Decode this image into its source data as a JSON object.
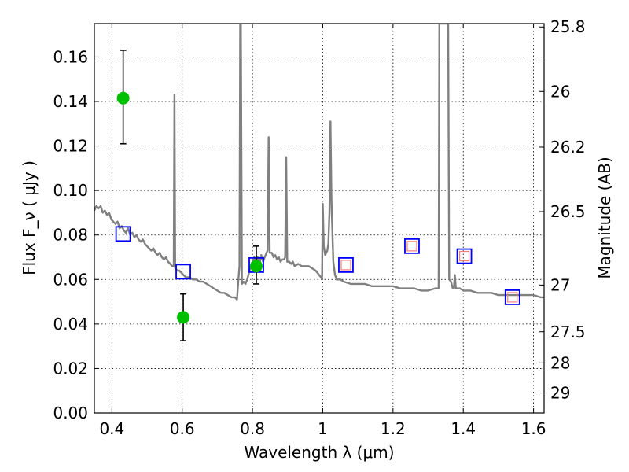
{
  "chart_data": {
    "type": "scatter",
    "title": "",
    "xlabel": "Wavelength  λ (μm)",
    "ylabel": "Flux  F_ν  ( μJy )",
    "ylabel_right": "Magnitude (AB)",
    "xlim": [
      0.35,
      1.63
    ],
    "ylim": [
      0.0,
      0.175
    ],
    "grid": true,
    "x_ticks": [
      0.4,
      0.6,
      0.8,
      1.0,
      1.2,
      1.4,
      1.6
    ],
    "x_tick_labels": [
      "0.4",
      "0.6",
      "0.8",
      "1",
      "1.2",
      "1.4",
      "1.6"
    ],
    "y_ticks": [
      0.0,
      0.02,
      0.04,
      0.06,
      0.08,
      0.1,
      0.12,
      0.14,
      0.16
    ],
    "y_tick_labels": [
      "0.00",
      "0.02",
      "0.04",
      "0.06",
      "0.08",
      "0.10",
      "0.12",
      "0.14",
      "0.16"
    ],
    "right_ticks": [
      {
        "label": "25.8",
        "flux": 0.1735
      },
      {
        "label": "26",
        "flux": 0.1445
      },
      {
        "label": "26.2",
        "flux": 0.1195
      },
      {
        "label": "26.5",
        "flux": 0.0905
      },
      {
        "label": "27",
        "flux": 0.0575
      },
      {
        "label": "27.5",
        "flux": 0.0365
      },
      {
        "label": "28",
        "flux": 0.0225
      },
      {
        "label": "29",
        "flux": 0.009
      }
    ],
    "series": [
      {
        "kind": "sed_model_line",
        "color": "#808080",
        "points": [
          [
            0.35,
            0.091
          ],
          [
            0.356,
            0.093
          ],
          [
            0.362,
            0.092
          ],
          [
            0.368,
            0.093
          ],
          [
            0.374,
            0.09
          ],
          [
            0.38,
            0.091
          ],
          [
            0.386,
            0.089
          ],
          [
            0.392,
            0.09
          ],
          [
            0.398,
            0.087
          ],
          [
            0.404,
            0.086
          ],
          [
            0.41,
            0.085
          ],
          [
            0.416,
            0.086
          ],
          [
            0.422,
            0.083
          ],
          [
            0.428,
            0.084
          ],
          [
            0.434,
            0.082
          ],
          [
            0.44,
            0.081
          ],
          [
            0.446,
            0.083
          ],
          [
            0.452,
            0.08
          ],
          [
            0.458,
            0.081
          ],
          [
            0.464,
            0.079
          ],
          [
            0.47,
            0.08
          ],
          [
            0.476,
            0.078
          ],
          [
            0.482,
            0.077
          ],
          [
            0.488,
            0.078
          ],
          [
            0.494,
            0.076
          ],
          [
            0.5,
            0.075
          ],
          [
            0.506,
            0.074
          ],
          [
            0.512,
            0.073
          ],
          [
            0.518,
            0.074
          ],
          [
            0.524,
            0.072
          ],
          [
            0.53,
            0.071
          ],
          [
            0.536,
            0.072
          ],
          [
            0.542,
            0.07
          ],
          [
            0.548,
            0.069
          ],
          [
            0.554,
            0.07
          ],
          [
            0.56,
            0.068
          ],
          [
            0.566,
            0.067
          ],
          [
            0.572,
            0.066
          ],
          [
            0.576,
            0.066
          ],
          [
            0.578,
            0.143
          ],
          [
            0.58,
            0.065
          ],
          [
            0.586,
            0.064
          ],
          [
            0.592,
            0.064
          ],
          [
            0.598,
            0.063
          ],
          [
            0.604,
            0.062
          ],
          [
            0.61,
            0.061
          ],
          [
            0.62,
            0.061
          ],
          [
            0.63,
            0.06
          ],
          [
            0.64,
            0.06
          ],
          [
            0.65,
            0.059
          ],
          [
            0.66,
            0.059
          ],
          [
            0.67,
            0.058
          ],
          [
            0.68,
            0.057
          ],
          [
            0.69,
            0.056
          ],
          [
            0.7,
            0.055
          ],
          [
            0.71,
            0.054
          ],
          [
            0.72,
            0.054
          ],
          [
            0.73,
            0.053
          ],
          [
            0.74,
            0.052
          ],
          [
            0.75,
            0.052
          ],
          [
            0.756,
            0.051
          ],
          [
            0.76,
            0.06
          ],
          [
            0.763,
            0.066
          ],
          [
            0.765,
            0.175
          ],
          [
            0.767,
            0.175
          ],
          [
            0.77,
            0.058
          ],
          [
            0.775,
            0.059
          ],
          [
            0.78,
            0.058
          ],
          [
            0.785,
            0.06
          ],
          [
            0.79,
            0.063
          ],
          [
            0.795,
            0.066
          ],
          [
            0.8,
            0.068
          ],
          [
            0.805,
            0.07
          ],
          [
            0.81,
            0.068
          ],
          [
            0.815,
            0.07
          ],
          [
            0.82,
            0.067
          ],
          [
            0.825,
            0.071
          ],
          [
            0.83,
            0.068
          ],
          [
            0.835,
            0.07
          ],
          [
            0.84,
            0.072
          ],
          [
            0.843,
            0.073
          ],
          [
            0.846,
            0.124
          ],
          [
            0.849,
            0.072
          ],
          [
            0.855,
            0.072
          ],
          [
            0.86,
            0.07
          ],
          [
            0.865,
            0.071
          ],
          [
            0.87,
            0.069
          ],
          [
            0.875,
            0.07
          ],
          [
            0.88,
            0.068
          ],
          [
            0.885,
            0.069
          ],
          [
            0.89,
            0.069
          ],
          [
            0.893,
            0.07
          ],
          [
            0.896,
            0.115
          ],
          [
            0.899,
            0.068
          ],
          [
            0.905,
            0.068
          ],
          [
            0.91,
            0.067
          ],
          [
            0.915,
            0.068
          ],
          [
            0.92,
            0.066
          ],
          [
            0.93,
            0.067
          ],
          [
            0.94,
            0.066
          ],
          [
            0.95,
            0.066
          ],
          [
            0.96,
            0.066
          ],
          [
            0.97,
            0.065
          ],
          [
            0.98,
            0.064
          ],
          [
            0.99,
            0.062
          ],
          [
            0.995,
            0.061
          ],
          [
            0.998,
            0.06
          ],
          [
            1.0,
            0.094
          ],
          [
            1.003,
            0.075
          ],
          [
            1.007,
            0.071
          ],
          [
            1.01,
            0.072
          ],
          [
            1.013,
            0.073
          ],
          [
            1.016,
            0.076
          ],
          [
            1.019,
            0.09
          ],
          [
            1.022,
            0.131
          ],
          [
            1.025,
            0.095
          ],
          [
            1.03,
            0.068
          ],
          [
            1.035,
            0.062
          ],
          [
            1.04,
            0.06
          ],
          [
            1.05,
            0.06
          ],
          [
            1.06,
            0.059
          ],
          [
            1.08,
            0.058
          ],
          [
            1.1,
            0.058
          ],
          [
            1.12,
            0.058
          ],
          [
            1.14,
            0.057
          ],
          [
            1.16,
            0.057
          ],
          [
            1.18,
            0.057
          ],
          [
            1.2,
            0.057
          ],
          [
            1.22,
            0.056
          ],
          [
            1.24,
            0.056
          ],
          [
            1.26,
            0.056
          ],
          [
            1.28,
            0.055
          ],
          [
            1.3,
            0.055
          ],
          [
            1.32,
            0.056
          ],
          [
            1.33,
            0.056
          ],
          [
            1.332,
            0.175
          ],
          [
            1.34,
            0.175
          ],
          [
            1.343,
            0.175
          ],
          [
            1.345,
            0.175
          ],
          [
            1.35,
            0.175
          ],
          [
            1.357,
            0.175
          ],
          [
            1.36,
            0.06
          ],
          [
            1.365,
            0.059
          ],
          [
            1.37,
            0.056
          ],
          [
            1.373,
            0.056
          ],
          [
            1.376,
            0.062
          ],
          [
            1.379,
            0.056
          ],
          [
            1.39,
            0.056
          ],
          [
            1.4,
            0.055
          ],
          [
            1.42,
            0.055
          ],
          [
            1.44,
            0.054
          ],
          [
            1.46,
            0.054
          ],
          [
            1.48,
            0.054
          ],
          [
            1.5,
            0.053
          ],
          [
            1.52,
            0.053
          ],
          [
            1.54,
            0.053
          ],
          [
            1.56,
            0.053
          ],
          [
            1.58,
            0.053
          ],
          [
            1.6,
            0.053
          ],
          [
            1.62,
            0.052
          ],
          [
            1.63,
            0.052
          ]
        ]
      },
      {
        "kind": "model_photometry",
        "marker": "square",
        "color": "#0000ff",
        "points": [
          [
            0.432,
            0.0805
          ],
          [
            0.603,
            0.0635
          ],
          [
            0.811,
            0.0665
          ],
          [
            1.066,
            0.0665
          ],
          [
            1.254,
            0.075
          ],
          [
            1.403,
            0.0705
          ],
          [
            1.54,
            0.052
          ]
        ]
      },
      {
        "kind": "observed_photometry_inner",
        "marker": "square",
        "color": "#ff7a7a",
        "points": [
          [
            1.066,
            0.0665
          ],
          [
            1.254,
            0.075
          ],
          [
            1.403,
            0.0705
          ],
          [
            1.54,
            0.052
          ]
        ]
      },
      {
        "kind": "observed_photometry",
        "marker": "circle",
        "color": "#00c000",
        "points": [
          {
            "x": 0.432,
            "y": 0.1415,
            "yerr_low": 0.121,
            "yerr_high": 0.163
          },
          {
            "x": 0.603,
            "y": 0.043,
            "yerr_low": 0.0325,
            "yerr_high": 0.0535
          },
          {
            "x": 0.811,
            "y": 0.066,
            "yerr_low": 0.058,
            "yerr_high": 0.075
          }
        ]
      }
    ]
  }
}
